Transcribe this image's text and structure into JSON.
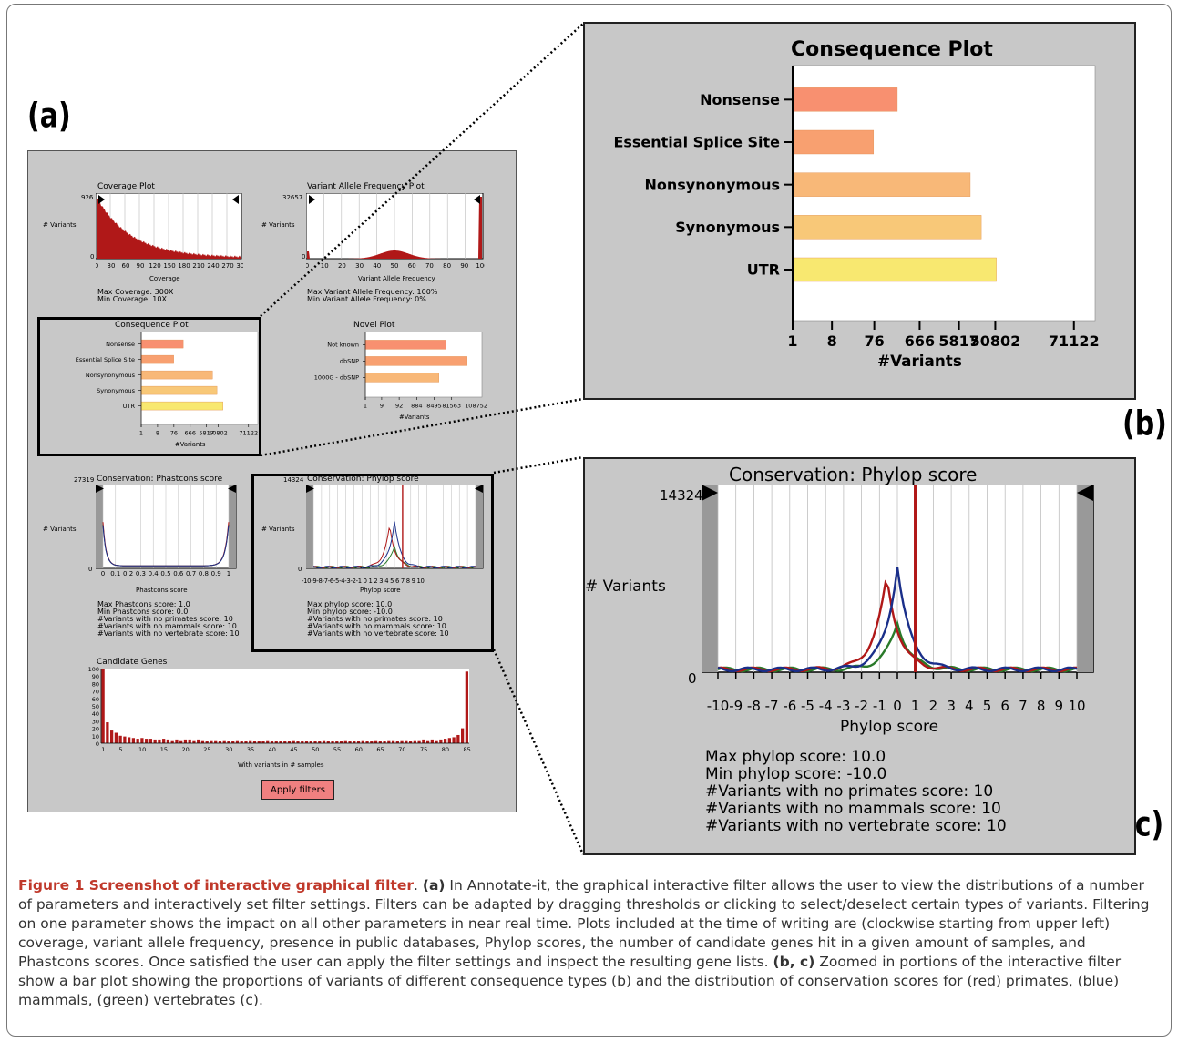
{
  "figure": {
    "label_a": "(a)",
    "label_b": "(b)",
    "label_c": "(c)",
    "caption_title": "Figure 1 Screenshot of interactive graphical filter",
    "caption_a": "(a)",
    "caption_a_text": " In Annotate-it, the graphical interactive filter allows the user to view the distributions of a number of parameters and interactively set filter settings. Filters can be adapted by dragging thresholds or clicking to select/deselect certain types of variants. Filtering on one parameter shows the impact on all other parameters in near real time. Plots included at the time of writing are (clockwise starting from upper left) coverage, variant allele frequency, presence in public databases, Phylop scores, the number of candidate genes hit in a given amount of samples, and Phastcons scores. Once satisfied the user can apply the filter settings and inspect the resulting gene lists. ",
    "caption_bc": "(b, c)",
    "caption_bc_text": " Zoomed in portions of the interactive filter show a bar plot showing the proportions of variants of different consequence types (b) and the distribution of conservation scores for (red) primates, (blue) mammals, (green) vertebrates (c)."
  },
  "coverage": {
    "title": "Coverage Plot",
    "ylabel": "# Variants",
    "ymax": "926",
    "ymin": "0",
    "xticks": [
      "0",
      "30",
      "60",
      "90",
      "120",
      "150",
      "180",
      "210",
      "240",
      "270",
      "300"
    ],
    "xlabel": "Coverage",
    "stat1": "Max Coverage: 300X",
    "stat2": "Min Coverage: 10X"
  },
  "vaf": {
    "title": "Variant Allele Frequency Plot",
    "ylabel": "# Variants",
    "ymax": "32657",
    "ymin": "0",
    "xticks": [
      "0",
      "10",
      "20",
      "30",
      "40",
      "50",
      "60",
      "70",
      "80",
      "90",
      "100"
    ],
    "xlabel": "Variant Allele Frequency",
    "stat1": "Max Variant Allele Frequency: 100%",
    "stat2": "Min Variant Allele Frequency: 0%"
  },
  "novel": {
    "title": "Novel Plot",
    "xlabel": "#Variants",
    "xticks": [
      "1",
      "9",
      "92",
      "884",
      "8495",
      "81563",
      "108752"
    ]
  },
  "phastcons": {
    "title": "Conservation: Phastcons score",
    "ylabel": "# Variants",
    "ymax": "27319",
    "ymin": "0",
    "xticks": [
      "0",
      "0.1",
      "0.2",
      "0.3",
      "0.4",
      "0.5",
      "0.6",
      "0.7",
      "0.8",
      "0.9",
      "1"
    ],
    "xlabel": "Phastcons score",
    "stats": [
      "Max Phastcons score: 1.0",
      "Min Phastcons score: 0.0",
      "#Variants with no primates score: 10",
      "#Variants with no mammals score: 10",
      "#Variants with no vertebrate score: 10"
    ]
  },
  "phylop": {
    "title": "Conservation: Phylop score",
    "ylabel": "# Variants",
    "ymax": "14324",
    "ymin": "0",
    "xticks_small": "-10-9-8-7-6-5-4-3-2-1 0 1 2 3 4 5 6 7 8 9 10",
    "xticks": [
      "-10",
      "-9",
      "-8",
      "-7",
      "-6",
      "-5",
      "-4",
      "-3",
      "-2",
      "-1",
      "0",
      "1",
      "2",
      "3",
      "4",
      "5",
      "6",
      "7",
      "8",
      "9",
      "10"
    ],
    "xlabel": "Phylop score",
    "stats": [
      "Max phylop score: 10.0",
      "Min phylop score: -10.0",
      "#Variants with no primates score: 10",
      "#Variants with no mammals score: 10",
      "#Variants with no vertebrate score: 10"
    ]
  },
  "candidate": {
    "title": "Candidate Genes",
    "xlabel": "With variants in # samples",
    "yticks": [
      "100",
      "90",
      "80",
      "70",
      "60",
      "50",
      "40",
      "30",
      "20",
      "10",
      "0"
    ],
    "xticks": [
      "1",
      "5",
      "10",
      "15",
      "20",
      "25",
      "30",
      "35",
      "40",
      "45",
      "50",
      "55",
      "60",
      "65",
      "70",
      "75",
      "80",
      "85"
    ]
  },
  "buttons": {
    "apply": "Apply filters"
  },
  "chart_data": [
    {
      "type": "bar",
      "title": "Consequence Plot",
      "orientation": "horizontal",
      "xscale": "log",
      "categories": [
        "Nonsense",
        "Essential Splice Site",
        "Nonsynonymous",
        "Synonymous",
        "UTR"
      ],
      "values": [
        200,
        60,
        8000,
        14000,
        30000
      ],
      "colors": [
        "#f89070",
        "#f8a070",
        "#f8b878",
        "#f8c878",
        "#f8e870"
      ],
      "xticks": [
        "1",
        "8",
        "76",
        "666",
        "5817",
        "50802",
        "71122"
      ],
      "xlabel": "#Variants"
    },
    {
      "type": "bar",
      "title": "Novel Plot",
      "orientation": "horizontal",
      "xscale": "log",
      "categories": [
        "Not known",
        "dbSNP",
        "1000G - dbSNP"
      ],
      "values": [
        3000,
        25000,
        1500
      ],
      "colors": [
        "#f89070",
        "#f8a070",
        "#f8b878"
      ],
      "xticks": [
        "1",
        "9",
        "92",
        "884",
        "8495",
        "81563",
        "108752"
      ],
      "xlabel": "#Variants"
    },
    {
      "type": "bar",
      "title": "Candidate Genes",
      "categories": [
        "1",
        "2",
        "3",
        "4",
        "5",
        "6",
        "7",
        "8",
        "9",
        "10",
        "11",
        "12",
        "13",
        "14",
        "15",
        "16",
        "17",
        "18",
        "19",
        "20",
        "21",
        "22",
        "23",
        "24",
        "25",
        "26",
        "27",
        "28",
        "29",
        "30",
        "31",
        "32",
        "33",
        "34",
        "35",
        "36",
        "37",
        "38",
        "39",
        "40",
        "41",
        "42",
        "43",
        "44",
        "45",
        "46",
        "47",
        "48",
        "49",
        "50",
        "51",
        "52",
        "53",
        "54",
        "55",
        "56",
        "57",
        "58",
        "59",
        "60",
        "61",
        "62",
        "63",
        "64",
        "65",
        "66",
        "67",
        "68",
        "69",
        "70",
        "71",
        "72",
        "73",
        "74",
        "75",
        "76",
        "77",
        "78",
        "79",
        "80",
        "81",
        "82",
        "83",
        "84",
        "85"
      ],
      "values": [
        100,
        28,
        17,
        14,
        10,
        9,
        8,
        7,
        6,
        7,
        6,
        6,
        5,
        5,
        6,
        5,
        4,
        5,
        4,
        5,
        5,
        4,
        5,
        4,
        3,
        4,
        4,
        3,
        4,
        3,
        3,
        4,
        3,
        3,
        4,
        3,
        3,
        3,
        4,
        3,
        3,
        3,
        3,
        3,
        4,
        3,
        3,
        3,
        3,
        3,
        3,
        4,
        3,
        3,
        3,
        3,
        4,
        3,
        3,
        3,
        4,
        3,
        3,
        4,
        3,
        3,
        4,
        4,
        3,
        4,
        4,
        3,
        4,
        4,
        5,
        4,
        5,
        4,
        5,
        6,
        7,
        8,
        11,
        20,
        96
      ],
      "ylim": [
        0,
        100
      ],
      "xlabel": "With variants in # samples"
    }
  ]
}
